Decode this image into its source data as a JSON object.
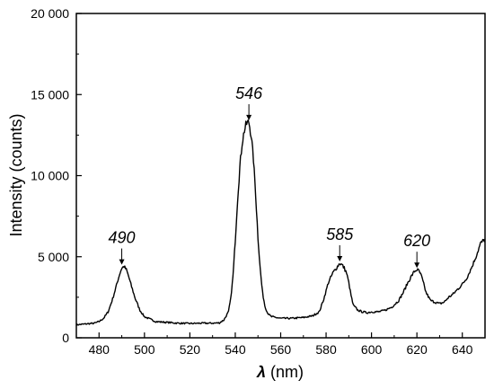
{
  "chart_data": {
    "type": "line",
    "xlabel_symbol": "λ",
    "xlabel_unit": " (nm)",
    "ylabel": "Intensity (counts)",
    "xlim": [
      470,
      650
    ],
    "ylim": [
      0,
      20000
    ],
    "x_ticks": [
      480,
      500,
      520,
      540,
      560,
      580,
      600,
      620,
      640
    ],
    "y_ticks": [
      0,
      5000,
      10000,
      15000,
      20000
    ],
    "y_tick_labels": [
      "0",
      "5 000",
      "10 000",
      "15 000",
      "20 000"
    ],
    "grid": false,
    "line_color": "#000000",
    "series": [
      {
        "x": [
          470,
          474,
          478,
          480,
          482,
          484,
          486,
          488,
          489,
          490,
          491,
          492,
          493,
          494,
          496,
          498,
          500,
          505,
          510,
          515,
          520,
          525,
          530,
          533,
          535,
          537,
          538,
          539,
          540,
          541,
          542,
          543,
          544,
          545,
          546,
          547,
          548,
          549,
          550,
          551,
          552,
          553,
          554,
          555,
          556,
          558,
          560,
          565,
          570,
          574,
          577,
          579,
          581,
          583,
          584,
          585,
          586,
          587,
          588,
          589,
          590,
          591,
          592,
          594,
          596,
          598,
          600,
          603,
          606,
          609,
          612,
          614,
          616,
          618,
          619,
          620,
          621,
          622,
          623,
          624,
          626,
          628,
          630,
          632,
          634,
          636,
          638,
          640,
          642,
          644,
          646,
          648,
          650
        ],
        "y": [
          800,
          850,
          900,
          1000,
          1200,
          1600,
          2400,
          3400,
          3900,
          4300,
          4400,
          4200,
          3800,
          3300,
          2400,
          1700,
          1300,
          1000,
          950,
          900,
          880,
          900,
          900,
          920,
          1100,
          1600,
          2400,
          3800,
          6000,
          8500,
          10500,
          12000,
          12800,
          13200,
          13300,
          12500,
          11000,
          8800,
          6200,
          4200,
          2800,
          2000,
          1600,
          1400,
          1300,
          1250,
          1200,
          1200,
          1250,
          1350,
          1600,
          2400,
          3400,
          4000,
          4200,
          4400,
          4600,
          4500,
          4300,
          4000,
          3400,
          2600,
          2000,
          1700,
          1600,
          1550,
          1600,
          1600,
          1700,
          1900,
          2300,
          2800,
          3400,
          3900,
          4100,
          4200,
          4100,
          3800,
          3300,
          2800,
          2300,
          2200,
          2100,
          2200,
          2500,
          2700,
          3000,
          3300,
          3700,
          4300,
          5000,
          5800,
          6100
        ]
      }
    ],
    "annotations": [
      {
        "text": "490",
        "x": 490,
        "y": 4400
      },
      {
        "text": "546",
        "x": 546,
        "y": 13300
      },
      {
        "text": "585",
        "x": 586,
        "y": 4600
      },
      {
        "text": "620",
        "x": 620,
        "y": 4200
      }
    ]
  }
}
